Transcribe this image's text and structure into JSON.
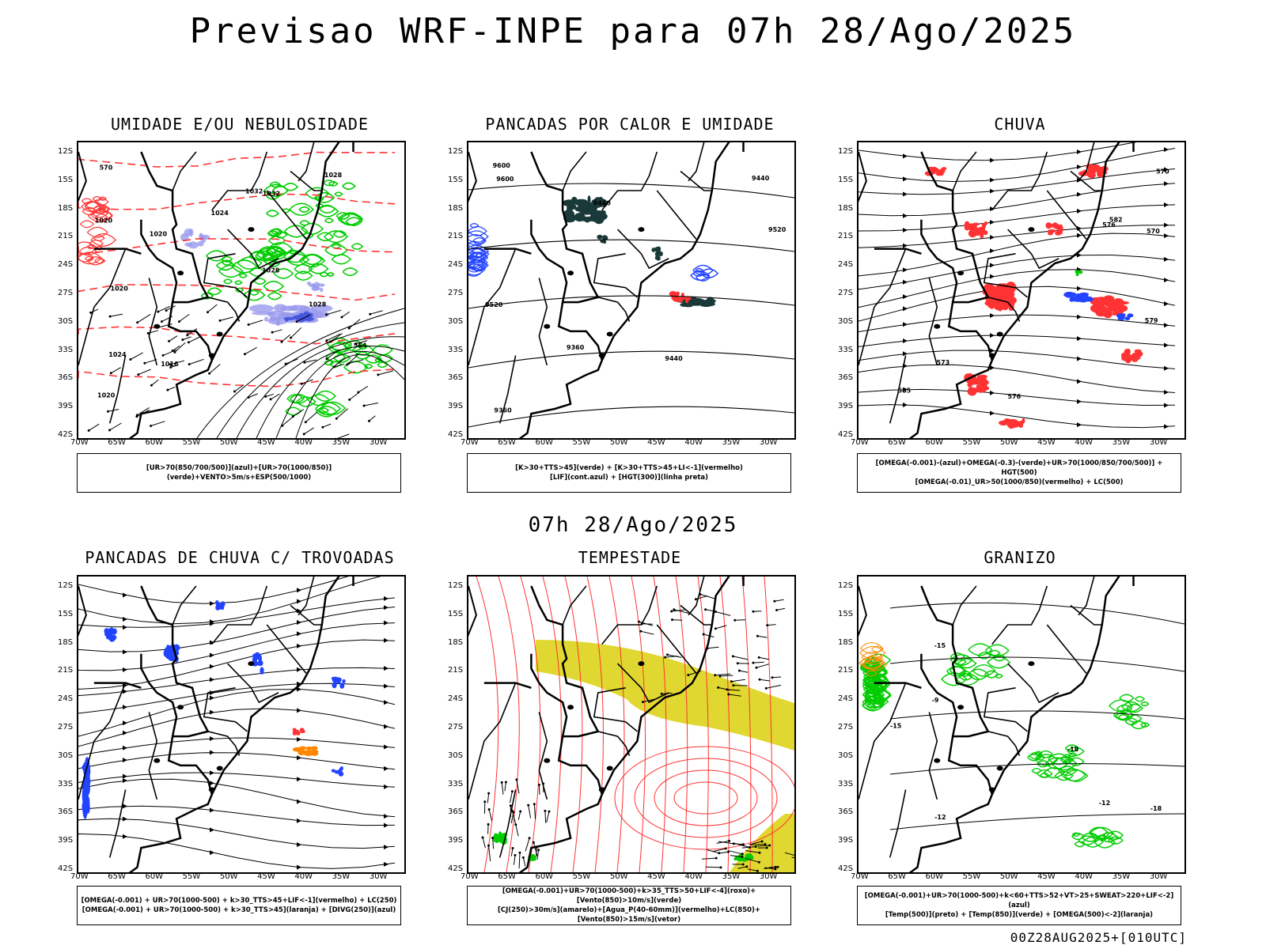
{
  "main_title": "Previsao WRF-INPE  para 07h 28/Ago/2025",
  "mid_title": "07h 28/Ago/2025",
  "stamp": "00Z28AUG2025+[010UTC]",
  "lat_ticks": [
    "12S",
    "15S",
    "18S",
    "21S",
    "24S",
    "27S",
    "30S",
    "33S",
    "36S",
    "39S",
    "42S"
  ],
  "lon_ticks": [
    "70W",
    "65W",
    "60W",
    "55W",
    "50W",
    "45W",
    "40W",
    "35W",
    "30W"
  ],
  "panels": [
    {
      "title": "UMIDADE E/OU NEBULOSIDADE",
      "legend": [
        "[UR>70(850/700/500)](azul)+[UR>70(1000/850)](verde)+VENTO>5m/s+ESP(500/1000)"
      ],
      "contour_labels": [
        "1020",
        "1016",
        "1020",
        "1024",
        "1020",
        "1024",
        "1028",
        "1028",
        "1032",
        "1032",
        "1028",
        "1020",
        "564",
        "570"
      ]
    },
    {
      "title": "PANCADAS POR CALOR E UMIDADE",
      "legend": [
        "[K>30+TTS>45](verde) + [K>30+TTS>45+LI<-1](vermelho)",
        "[LIF](cont.azul) + [HGT(300)](linha preta)"
      ],
      "contour_labels": [
        "9600",
        "9600",
        "9520",
        "9440",
        "9520",
        "9440",
        "9440",
        "9360",
        "9360"
      ]
    },
    {
      "title": "CHUVA",
      "legend": [
        "[OMEGA(-0.001)-(azul)+OMEGA(-0.3)-(verde)+UR>70(1000/850/700/500)] + HGT(500)",
        "[OMEGA(-0.01)_UR>50(1000/850)(vermelho) + LC(500)"
      ],
      "contour_labels": [
        "585",
        "582",
        "579",
        "576",
        "576",
        "573",
        "570",
        "570"
      ]
    },
    {
      "title": "PANCADAS DE CHUVA C/ TROVOADAS",
      "legend": [
        "[OMEGA(-0.001) + UR>70(1000-500) + k>30_TTS>45+LIF<-1](vermelho) + LC(250)",
        "[OMEGA(-0.001) + UR>70(1000-500) + k>30_TTS>45](laranja) + [DIVG(250)](azul)"
      ],
      "contour_labels": []
    },
    {
      "title": "TEMPESTADE",
      "legend": [
        "[OMEGA(-0.001)+UR>70(1000-500)+k>35_TTS>50+LIF<-4](roxo)+[Vento(850)>10m/s](verde)",
        "[CJ(250)>30m/s](amarelo)+[Agua_P(40-60mm)](vermelho)+LC(850)+[Vento(850)>15m/s](vetor)"
      ],
      "contour_labels": []
    },
    {
      "title": "GRANIZO",
      "legend": [
        "[OMEGA(-0.001)+UR>70(1000-500)+k<60+TTS>52+VT>25+SWEAT>220+LIF<-2](azul)",
        "[Temp(500)](preto) + [Temp(850)](verde) + [OMEGA(500)<-2](laranja)"
      ],
      "contour_labels": [
        "-9",
        "-12",
        "-12",
        "-15",
        "-15",
        "-18",
        "-18"
      ]
    }
  ],
  "colors": {
    "green": "#00cc00",
    "red": "#ff3333",
    "blue": "#2244ff",
    "lavender": "#9999ee",
    "darkteal": "#1a3a3a",
    "yellow": "#e0d830",
    "orange": "#ff8800"
  }
}
